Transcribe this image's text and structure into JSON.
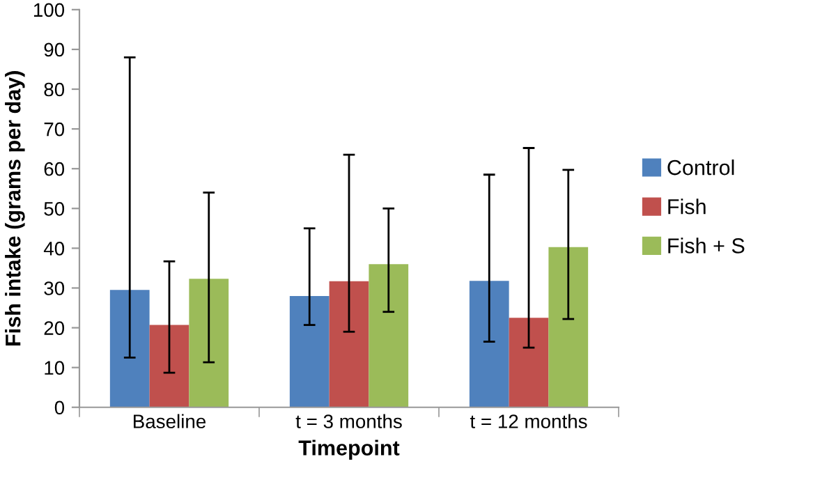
{
  "chart_data": {
    "type": "bar",
    "xlabel": "Timepoint",
    "ylabel": "Fish intake (grams per day)",
    "categories": [
      "Baseline",
      "t = 3 months",
      "t = 12 months"
    ],
    "series": [
      {
        "name": "Control",
        "color": "#4f81bd",
        "values": [
          29.5,
          28,
          31.8
        ],
        "errors": [
          [
            12.5,
            88
          ],
          [
            20.7,
            45
          ],
          [
            16.5,
            58.5
          ]
        ]
      },
      {
        "name": "Fish",
        "color": "#c0504d",
        "values": [
          20.7,
          31.7,
          22.5
        ],
        "errors": [
          [
            8.7,
            36.7
          ],
          [
            19,
            63.5
          ],
          [
            15,
            65.2
          ]
        ]
      },
      {
        "name": "Fish + S",
        "color": "#9bbb59",
        "values": [
          32.3,
          36,
          40.3
        ],
        "errors": [
          [
            11.3,
            54
          ],
          [
            24,
            50
          ],
          [
            22.2,
            59.7
          ]
        ]
      }
    ],
    "ylim": [
      0,
      100
    ],
    "yticks": [
      0,
      10,
      20,
      30,
      40,
      50,
      60,
      70,
      80,
      90,
      100
    ],
    "grid": false,
    "legend": "right"
  }
}
